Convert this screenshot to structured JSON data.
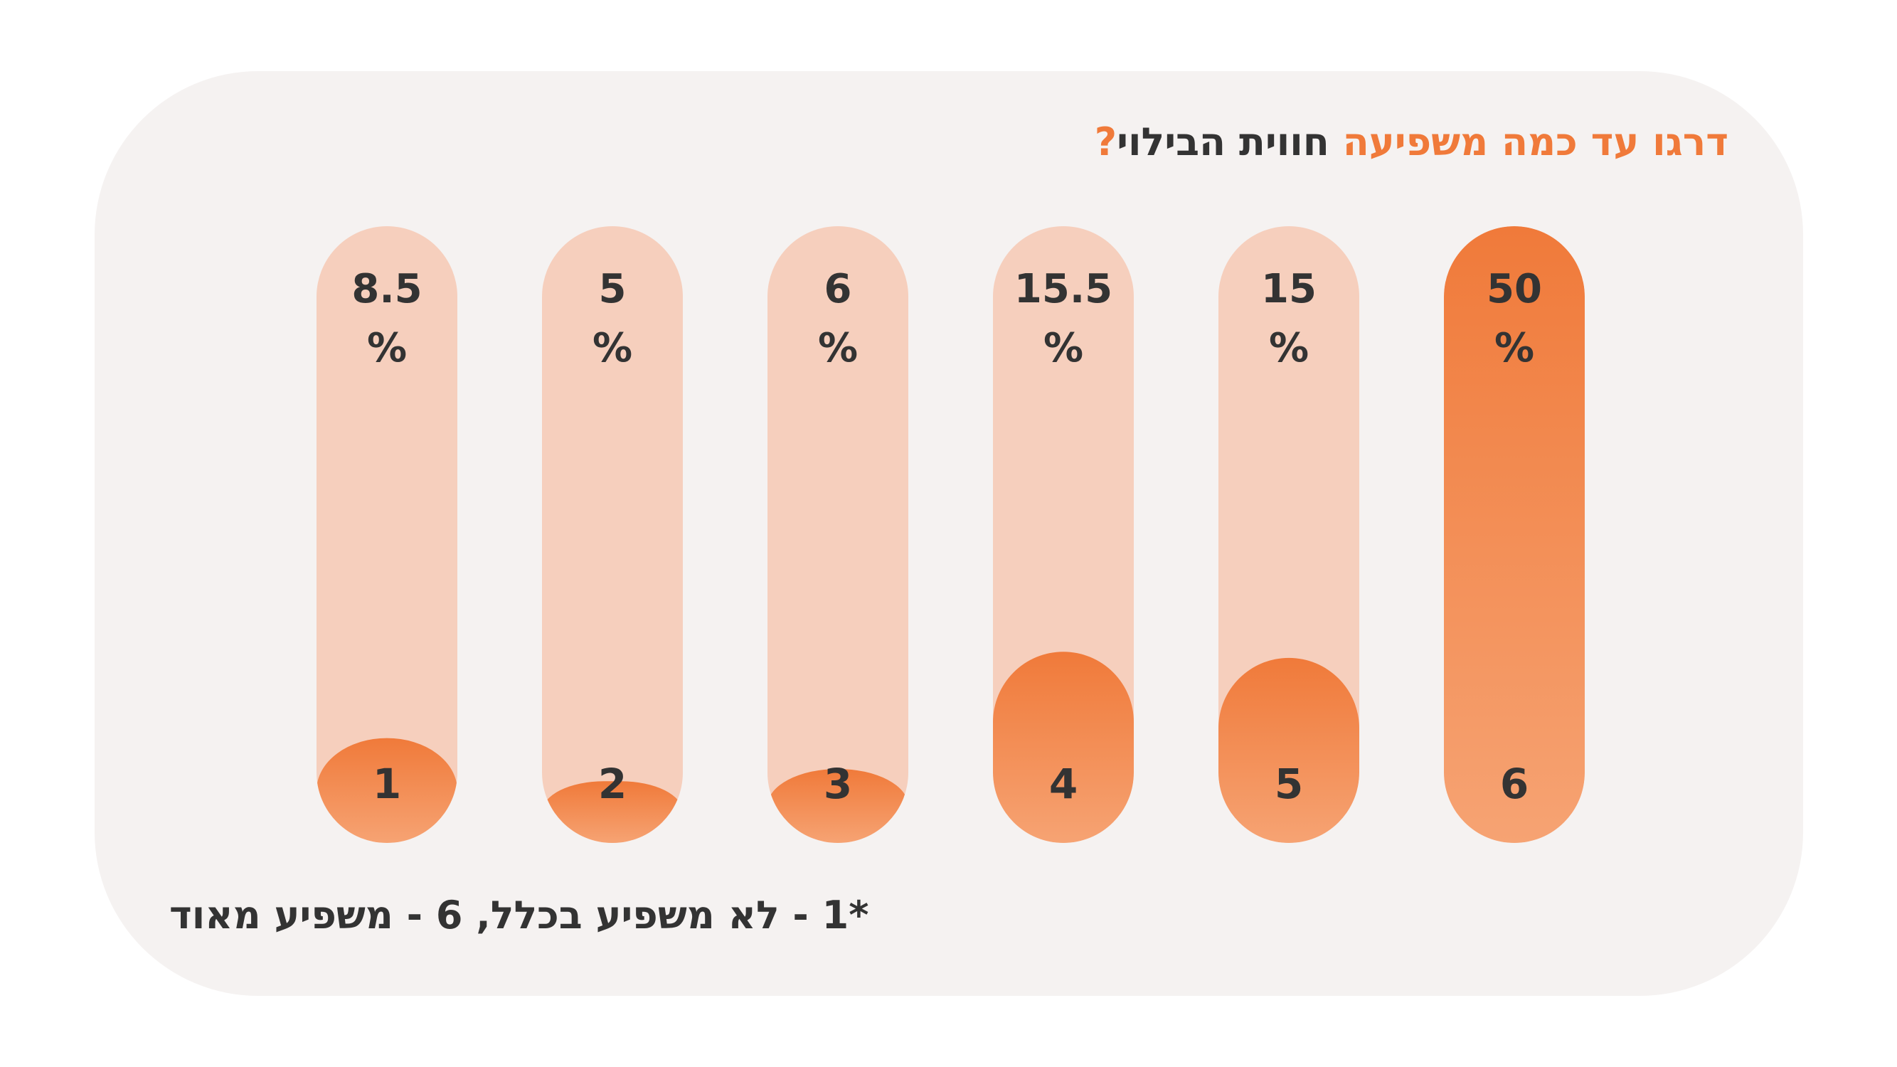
{
  "title": {
    "accent_part": "דרגו עד כמה משפיעה",
    "plain_part": " חווית הבילוי",
    "question_mark": "?"
  },
  "footnote": "*1 - לא משפיע בכלל, 6 - משפיע מאוד",
  "colors": {
    "panel": "#f5f2f1",
    "track": "#f6cfbd",
    "fill_top": "#f07a3a",
    "fill_bottom": "#f6a373",
    "text": "#333333"
  },
  "chart_data": {
    "type": "bar",
    "categories": [
      "1",
      "2",
      "3",
      "4",
      "5",
      "6"
    ],
    "values": [
      8.5,
      5,
      6,
      15.5,
      15,
      50
    ],
    "value_labels": [
      "8.5",
      "5",
      "6",
      "15.5",
      "15",
      "50"
    ],
    "unit": "%",
    "ylim": [
      0,
      50
    ],
    "grid": false,
    "legend": "none"
  }
}
